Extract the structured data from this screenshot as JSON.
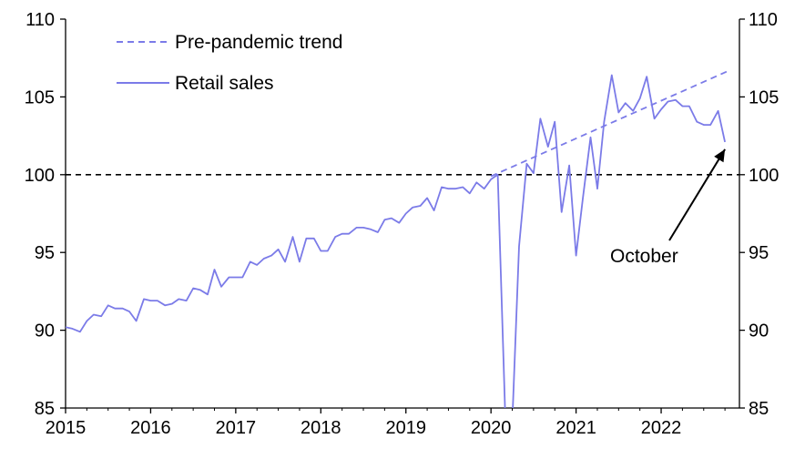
{
  "chart_data": {
    "type": "line",
    "xlim": [
      2015,
      2022.92
    ],
    "ylim": [
      85,
      110
    ],
    "x_ticks": [
      "2015",
      "2016",
      "2017",
      "2018",
      "2019",
      "2020",
      "2021",
      "2022"
    ],
    "y_ticks_left": [
      "85",
      "90",
      "95",
      "100",
      "105",
      "110"
    ],
    "y_ticks_right": [
      "85",
      "90",
      "95",
      "100",
      "105",
      "110"
    ],
    "reference_line": {
      "y": 100,
      "style": "dashed",
      "color": "#000000"
    },
    "legend_placement": "top-left",
    "series": [
      {
        "name": "Pre-pandemic trend",
        "style": "dashed",
        "color": "#7b7be8",
        "x": [
          2020.0,
          2022.8
        ],
        "y": [
          99.9,
          106.7
        ]
      },
      {
        "name": "Retail sales",
        "style": "solid",
        "color": "#7b7be8",
        "x": [
          2015.0,
          2015.08,
          2015.17,
          2015.25,
          2015.33,
          2015.42,
          2015.5,
          2015.58,
          2015.67,
          2015.75,
          2015.83,
          2015.92,
          2016.0,
          2016.08,
          2016.17,
          2016.25,
          2016.33,
          2016.42,
          2016.5,
          2016.58,
          2016.67,
          2016.75,
          2016.83,
          2016.92,
          2017.0,
          2017.08,
          2017.17,
          2017.25,
          2017.33,
          2017.42,
          2017.5,
          2017.58,
          2017.67,
          2017.75,
          2017.83,
          2017.92,
          2018.0,
          2018.08,
          2018.17,
          2018.25,
          2018.33,
          2018.42,
          2018.5,
          2018.58,
          2018.67,
          2018.75,
          2018.83,
          2018.92,
          2019.0,
          2019.08,
          2019.17,
          2019.25,
          2019.33,
          2019.42,
          2019.5,
          2019.58,
          2019.67,
          2019.75,
          2019.83,
          2019.92,
          2020.0,
          2020.08,
          2020.17,
          2020.25,
          2020.33,
          2020.42,
          2020.5,
          2020.58,
          2020.67,
          2020.75,
          2020.83,
          2020.92,
          2021.0,
          2021.08,
          2021.17,
          2021.25,
          2021.33,
          2021.42,
          2021.5,
          2021.58,
          2021.67,
          2021.75,
          2021.83,
          2021.92,
          2022.0,
          2022.08,
          2022.17,
          2022.25,
          2022.33,
          2022.42,
          2022.5,
          2022.58,
          2022.67,
          2022.75
        ],
        "y": [
          90.2,
          90.1,
          89.9,
          90.6,
          91.0,
          90.9,
          91.6,
          91.4,
          91.4,
          91.2,
          90.6,
          92.0,
          91.9,
          91.9,
          91.6,
          91.7,
          92.0,
          91.9,
          92.7,
          92.6,
          92.3,
          93.9,
          92.8,
          93.4,
          93.4,
          93.4,
          94.4,
          94.2,
          94.6,
          94.8,
          95.2,
          94.4,
          96.0,
          94.4,
          95.9,
          95.9,
          95.1,
          95.1,
          96.0,
          96.2,
          96.2,
          96.6,
          96.6,
          96.5,
          96.3,
          97.1,
          97.2,
          96.9,
          97.5,
          97.9,
          98.0,
          98.5,
          97.7,
          99.2,
          99.1,
          99.1,
          99.2,
          98.8,
          99.5,
          99.1,
          99.7,
          100.0,
          84.0,
          84.0,
          95.4,
          100.7,
          100.1,
          103.6,
          101.8,
          103.4,
          97.6,
          100.6,
          94.8,
          98.5,
          102.4,
          99.1,
          103.4,
          106.4,
          104.0,
          104.6,
          104.1,
          104.9,
          106.3,
          103.6,
          104.2,
          104.7,
          104.8,
          104.4,
          104.4,
          103.4,
          103.2,
          103.2,
          104.1,
          102.1
        ]
      }
    ],
    "annotations": [
      {
        "text": "October",
        "arrow_to": {
          "x": 2022.75,
          "y": 102.1
        }
      }
    ]
  }
}
